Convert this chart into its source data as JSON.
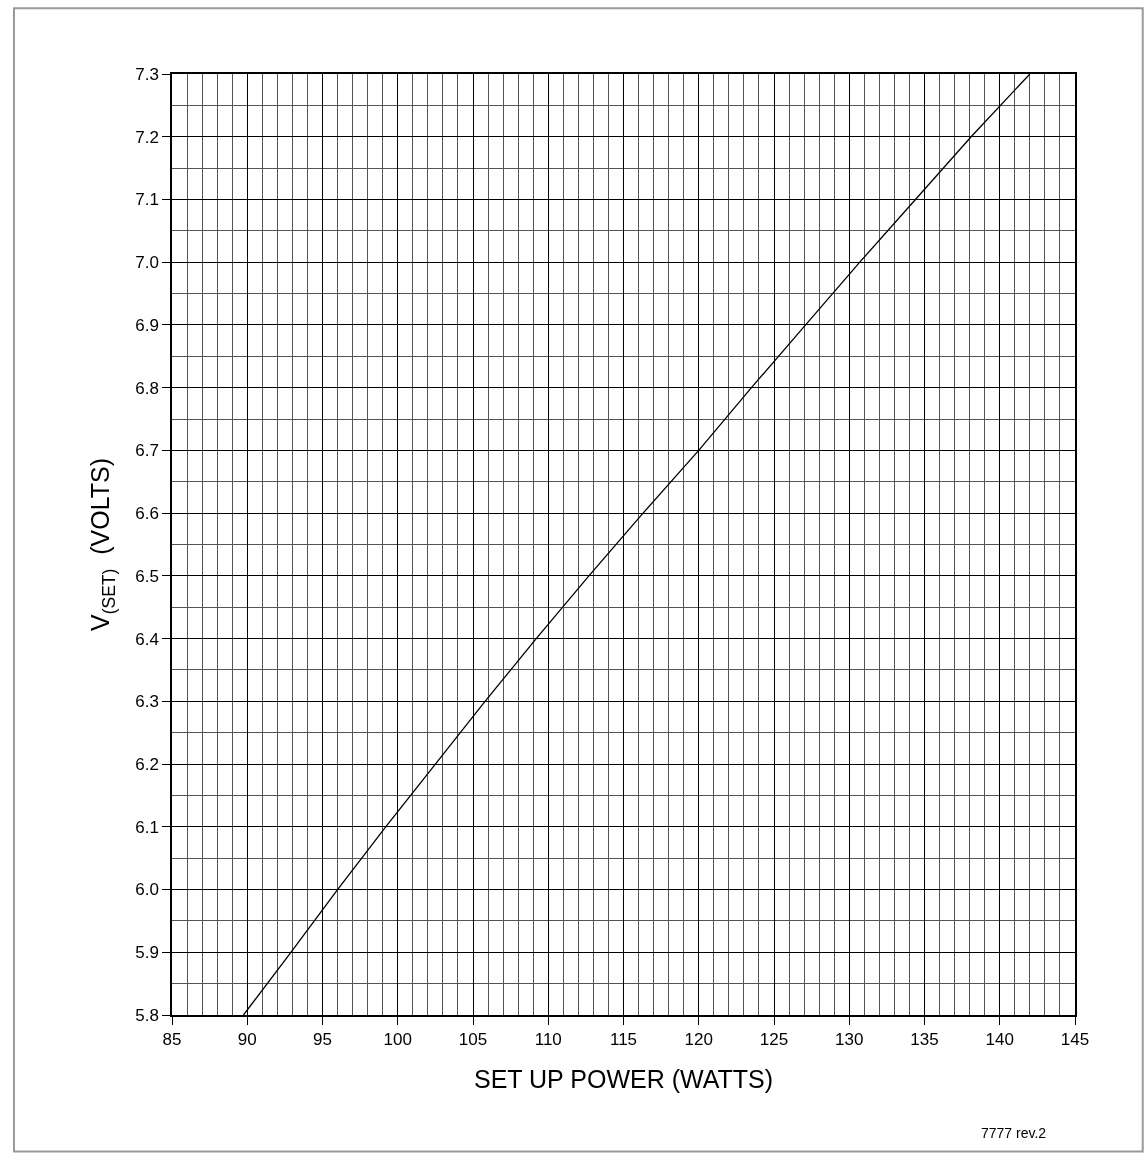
{
  "chart_data": {
    "type": "line",
    "xlabel": "SET UP POWER (WATTS)",
    "ylabel": "V$_{(SET)}$  (VOLTS)",
    "x": [
      89.75,
      92.9,
      96.0,
      99.2,
      102.5,
      105.8,
      109.2,
      112.7,
      116.3,
      120.0,
      123.5,
      127.1,
      130.7,
      134.4,
      138.1,
      142.0
    ],
    "series": [
      {
        "color": "#000000",
        "values": [
          5.8,
          5.9,
          6.0,
          6.1,
          6.2,
          6.3,
          6.4,
          6.5,
          6.6,
          6.7,
          6.8,
          6.9,
          7.0,
          7.1,
          7.2,
          7.3
        ]
      }
    ],
    "xlim": [
      85,
      145
    ],
    "xticks": [
      85,
      90,
      95,
      100,
      105,
      110,
      115,
      120,
      125,
      130,
      135,
      140,
      145
    ],
    "ylim": [
      5.8,
      7.3
    ],
    "yticks": [
      5.8,
      5.9,
      {
        "value": 6.0,
        "label": "6.0"
      },
      6.1,
      6.2,
      6.3,
      6.4,
      6.5,
      6.6,
      6.7,
      6.8,
      6.9,
      {
        "value": 7.0,
        "label": "7.0"
      },
      7.1,
      7.2,
      7.3
    ],
    "grid": true,
    "marker": "none",
    "line_style": "solid",
    "annotations": [
      "7777 rev.2"
    ]
  }
}
